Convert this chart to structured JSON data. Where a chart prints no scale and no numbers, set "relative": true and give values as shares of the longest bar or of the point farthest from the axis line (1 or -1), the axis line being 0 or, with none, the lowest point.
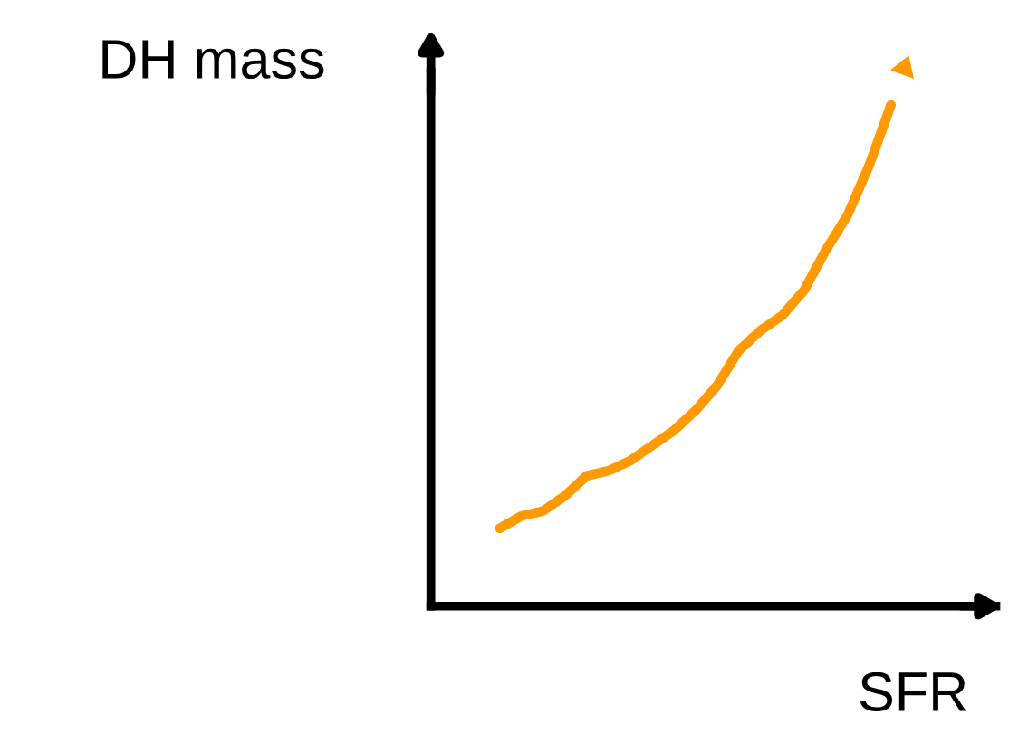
{
  "chart_data": {
    "type": "line",
    "relative": true,
    "xlabel": "SFR",
    "ylabel": "DH mass",
    "categories": [
      null,
      null,
      null,
      null,
      null,
      null,
      null,
      null,
      null,
      null,
      null,
      null,
      null,
      null,
      null,
      null,
      null,
      null,
      null
    ],
    "series": [
      {
        "color": "#ff9900",
        "values": [
          0.155,
          0.18,
          0.19,
          0.22,
          0.26,
          0.27,
          0.29,
          0.32,
          0.35,
          0.39,
          0.44,
          0.51,
          0.55,
          0.58,
          0.63,
          0.71,
          0.78,
          0.88,
          1
        ]
      }
    ],
    "marker": "none",
    "line_style": "solid"
  }
}
